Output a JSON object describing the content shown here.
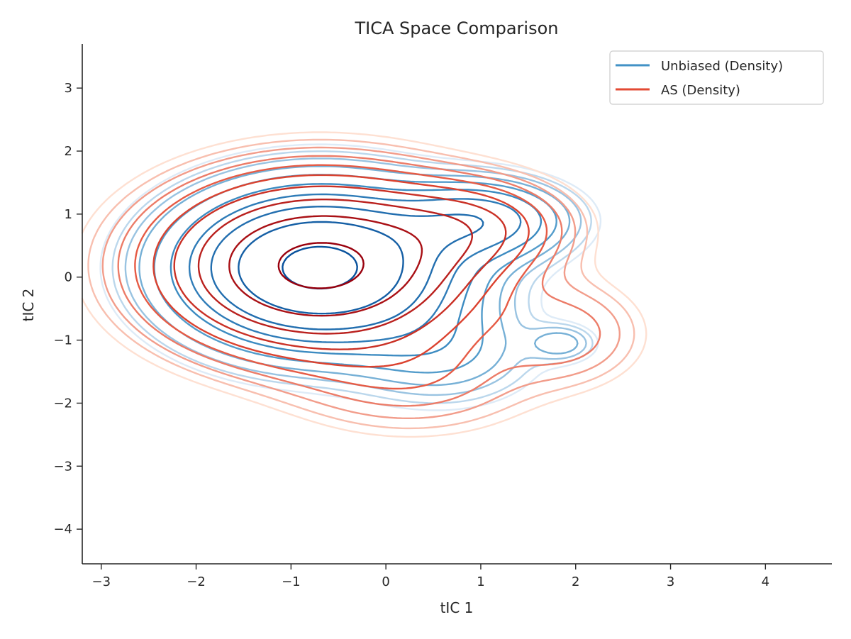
{
  "chart_data": {
    "type": "contour",
    "title": "TICA Space Comparison",
    "xlabel": "tIC 1",
    "ylabel": "tIC 2",
    "xlim": [
      -3.2,
      4.7
    ],
    "ylim": [
      -4.55,
      3.7
    ],
    "xticks": [
      -3,
      -2,
      -1,
      0,
      1,
      2,
      3,
      4
    ],
    "yticks": [
      -4,
      -3,
      -2,
      -1,
      0,
      1,
      2,
      3
    ],
    "xtick_labels": [
      "−3",
      "−2",
      "−1",
      "0",
      "1",
      "2",
      "3",
      "4"
    ],
    "ytick_labels": [
      "−4",
      "−3",
      "−2",
      "−1",
      "0",
      "1",
      "2",
      "3"
    ],
    "grid": false,
    "legend_position": "top-right",
    "series": [
      {
        "name": "Unbiased (Density)",
        "color": "#4292c6",
        "light_color": "#deebf7",
        "dark_color": "#08519c",
        "levels": 10,
        "components": [
          {
            "x": -0.7,
            "y": 0.15,
            "sx": 0.85,
            "sy": 0.72,
            "w": 1.0
          },
          {
            "x": 1.0,
            "y": 0.9,
            "sx": 0.55,
            "sy": 0.38,
            "w": 0.33
          },
          {
            "x": 1.85,
            "y": -1.05,
            "sx": 0.22,
            "sy": 0.18,
            "w": 0.1
          },
          {
            "x": 0.6,
            "y": -1.2,
            "sx": 0.6,
            "sy": 0.5,
            "w": 0.12
          }
        ]
      },
      {
        "name": "AS (Density)",
        "color": "#e34a33",
        "light_color": "#fee0d2",
        "dark_color": "#99000d",
        "levels": 10,
        "components": [
          {
            "x": -0.7,
            "y": 0.18,
            "sx": 0.95,
            "sy": 0.78,
            "w": 1.0
          },
          {
            "x": 0.9,
            "y": 0.8,
            "sx": 0.6,
            "sy": 0.45,
            "w": 0.22
          },
          {
            "x": 1.9,
            "y": -0.9,
            "sx": 0.5,
            "sy": 0.5,
            "w": 0.1
          },
          {
            "x": 0.3,
            "y": -1.6,
            "sx": 0.8,
            "sy": 0.55,
            "w": 0.1
          }
        ]
      }
    ]
  }
}
